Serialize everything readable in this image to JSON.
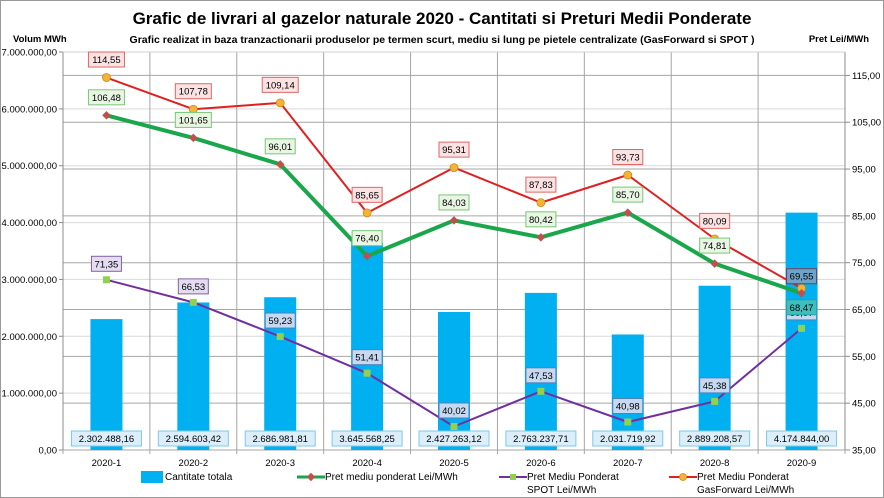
{
  "chart_data": {
    "type": "bar+line",
    "title": "Grafic de livrari al gazelor naturale 2020 - Cantitati si Preturi Medii Ponderate",
    "subtitle": "Grafic realizat in baza tranzactionarii produselor pe termen scurt, mediu si lung pe pietele centralizate (GasForward si SPOT )",
    "ylabel_left": "Volum MWh",
    "ylabel_right": "Pret Lei/MWh",
    "categories": [
      "2020-1",
      "2020-2",
      "2020-3",
      "2020-4",
      "2020-5",
      "2020-6",
      "2020-7",
      "2020-8",
      "2020-9"
    ],
    "ylim_left": [
      0,
      7000000
    ],
    "yticks_left": [
      "0,00",
      "1.000.000,00",
      "2.000.000,00",
      "3.000.000,00",
      "4.000.000,00",
      "5.000.000,00",
      "6.000.000,00",
      "7.000.000,00"
    ],
    "ylim_right": [
      35,
      120
    ],
    "yticks_right": [
      "35,00",
      "45,00",
      "55,00",
      "65,00",
      "75,00",
      "85,00",
      "95,00",
      "105,00",
      "115,00"
    ],
    "yticks_right_values": [
      35,
      45,
      55,
      65,
      75,
      85,
      95,
      105,
      115
    ],
    "grid": true,
    "legend_position": "bottom",
    "series": [
      {
        "name": "Cantitate totala",
        "type": "bar",
        "axis": "left",
        "color": "#00b0f0",
        "values": [
          2302488.16,
          2594603.42,
          2686981.81,
          3645568.25,
          2427263.12,
          2763237.71,
          2031719.92,
          2889208.57,
          4174844.0
        ],
        "labels": [
          "2.302.488,16",
          "2.594.603,42",
          "2.686.981,81",
          "3.645.568,25",
          "2.427.263,12",
          "2.763.237,71",
          "2.031.719,92",
          "2.889.208,57",
          "4.174.844,00"
        ]
      },
      {
        "name": "Pret mediu ponderat Lei/MWh",
        "type": "line",
        "axis": "right",
        "color": "#1aa64a",
        "marker_color": "#c0504d",
        "values": [
          106.48,
          101.65,
          96.01,
          76.4,
          84.03,
          80.42,
          85.7,
          74.81,
          68.47
        ],
        "labels": [
          "106,48",
          "101,65",
          "96,01",
          "76,40",
          "84,03",
          "80,42",
          "85,70",
          "74,81",
          "68,47"
        ]
      },
      {
        "name": "Pret Mediu Ponderat SPOT Lei/MWh",
        "type": "line",
        "axis": "right",
        "color": "#7030a0",
        "marker_color": "#92d050",
        "values": [
          71.35,
          66.53,
          59.23,
          51.41,
          40.02,
          47.53,
          40.98,
          45.38,
          60.97
        ],
        "labels": [
          "71,35",
          "66,53",
          "59,23",
          "51,41",
          "40,02",
          "47,53",
          "40,98",
          "45,38",
          "60,97"
        ]
      },
      {
        "name": "Pret Mediu Ponderat GasForward Lei/MWh",
        "type": "line",
        "axis": "right",
        "color": "#e02020",
        "marker_color": "#f5b335",
        "values": [
          114.55,
          107.78,
          109.14,
          85.65,
          95.31,
          87.83,
          93.73,
          80.09,
          69.55
        ],
        "labels": [
          "114,55",
          "107,78",
          "109,14",
          "85,65",
          "95,31",
          "87,83",
          "93,73",
          "80,09",
          "69,55"
        ]
      }
    ]
  },
  "legend": {
    "bar": "Cantitate totala",
    "avg": "Pret mediu ponderat Lei/MWh",
    "spot_line1": "Pret Mediu Ponderat",
    "spot_line2": "SPOT Lei/MWh",
    "gf_line1": "Pret Mediu Ponderat",
    "gf_line2": "GasForward Lei/MWh"
  }
}
